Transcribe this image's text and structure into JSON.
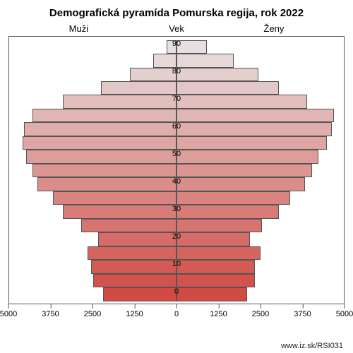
{
  "chart": {
    "type": "population-pyramid",
    "title": "Demografická pyramída Pomurska regija, rok 2022",
    "title_fontsize": 15,
    "labels": {
      "left": "Muži",
      "center": "Vek",
      "right": "Ženy"
    },
    "background_color": "#ffffff",
    "border_color": "#555555",
    "xaxis": {
      "max": 5000,
      "ticks_left": [
        5000,
        3750,
        2500,
        1250,
        0
      ],
      "ticks_right": [
        0,
        1250,
        2500,
        3750,
        5000
      ]
    },
    "yaxis": {
      "tick_labels": [
        "0",
        "10",
        "20",
        "30",
        "40",
        "50",
        "60",
        "70",
        "80",
        "90"
      ],
      "tick_label_rows": [
        0,
        2,
        4,
        6,
        8,
        10,
        12,
        14,
        16,
        18
      ]
    },
    "color_top": "#e6e0e0",
    "color_bottom": "#d24a44",
    "bars": [
      {
        "age_start": 0,
        "male": 2200,
        "female": 2100
      },
      {
        "age_start": 5,
        "male": 2500,
        "female": 2350
      },
      {
        "age_start": 10,
        "male": 2550,
        "female": 2350
      },
      {
        "age_start": 15,
        "male": 2650,
        "female": 2500
      },
      {
        "age_start": 20,
        "male": 2350,
        "female": 2200
      },
      {
        "age_start": 25,
        "male": 2850,
        "female": 2550
      },
      {
        "age_start": 30,
        "male": 3400,
        "female": 3050
      },
      {
        "age_start": 35,
        "male": 3700,
        "female": 3400
      },
      {
        "age_start": 40,
        "male": 4150,
        "female": 3850
      },
      {
        "age_start": 45,
        "male": 4300,
        "female": 4050
      },
      {
        "age_start": 50,
        "male": 4500,
        "female": 4250
      },
      {
        "age_start": 55,
        "male": 4600,
        "female": 4500
      },
      {
        "age_start": 60,
        "male": 4550,
        "female": 4650
      },
      {
        "age_start": 65,
        "male": 4300,
        "female": 4700
      },
      {
        "age_start": 70,
        "male": 3400,
        "female": 3900
      },
      {
        "age_start": 75,
        "male": 2250,
        "female": 3050
      },
      {
        "age_start": 80,
        "male": 1400,
        "female": 2450
      },
      {
        "age_start": 85,
        "male": 700,
        "female": 1700
      },
      {
        "age_start": 90,
        "male": 300,
        "female": 900
      }
    ],
    "footer": "www.iz.sk/RSI031"
  }
}
